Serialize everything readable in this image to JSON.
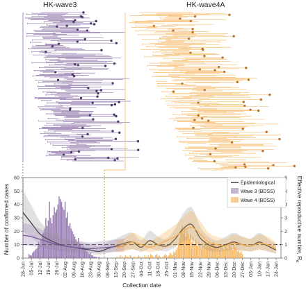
{
  "chart_data": {
    "type": "bar",
    "panels": {
      "tree": {
        "labels": [
          "HK-wave3",
          "HK-wave4A"
        ],
        "colors": {
          "wave3": "#7a5a9a",
          "wave4": "#f5ae4e"
        }
      }
    },
    "xlabel": "Collection date",
    "ylabel": "Number of confirmed cases",
    "y2label": "Effective reproductive number, R",
    "y2label_sub": "e",
    "ylim": [
      0,
      60
    ],
    "y2lim": [
      0,
      6
    ],
    "yticks": [
      0,
      10,
      20,
      30,
      40,
      50,
      60
    ],
    "y2ticks": [
      0,
      1,
      2,
      3,
      4,
      5,
      6
    ],
    "x_tick_labels": [
      "28-Jun",
      "05-Jul",
      "12-Jul",
      "19-Jul",
      "26-Jul",
      "02-Aug",
      "09-Aug",
      "16-Aug",
      "23-Aug",
      "30-Aug",
      "06-Sep",
      "13-Sep",
      "20-Sep",
      "27-Sep",
      "04-Oct",
      "11-Oct",
      "18-Oct",
      "25-Oct",
      "01-Nov",
      "08-Nov",
      "15-Nov",
      "22-Nov",
      "29-Nov",
      "06-Dec",
      "13-Dec",
      "20-Dec",
      "27-Dec",
      "03-Jan",
      "10-Jan",
      "17-Jan",
      "24-Jan"
    ],
    "x_start": "2020-06-28",
    "legend": {
      "placement": "top-right",
      "items": [
        {
          "label": "Epidemiological",
          "color": "#333333"
        },
        {
          "label": "Wave 3 (BDSS)",
          "color": "#7a5a9a"
        },
        {
          "label": "Wave 4 (BDSS)",
          "color": "#f5ae4e"
        }
      ]
    },
    "threshold_line": 1,
    "series": [
      {
        "name": "Wave 3",
        "kind": "bar",
        "color": "#8a6aa8",
        "start": "2020-07-03",
        "values": [
          3,
          2,
          2,
          4,
          5,
          6,
          7,
          8,
          12,
          10,
          14,
          18,
          19,
          22,
          30,
          24,
          28,
          42,
          30,
          26,
          32,
          38,
          34,
          36,
          40,
          46,
          44,
          42,
          38,
          36,
          42,
          30,
          34,
          24,
          26,
          22,
          20,
          18,
          16,
          14,
          12,
          15,
          11,
          10,
          8,
          9,
          7,
          6,
          5,
          4,
          3,
          4,
          2,
          2,
          1,
          1,
          1,
          0,
          1,
          0
        ]
      },
      {
        "name": "Wave 4",
        "kind": "bar",
        "color": "#f5ae4e",
        "start": "2020-09-14",
        "values": [
          1,
          0,
          1,
          2,
          0,
          1,
          0,
          2,
          1,
          1,
          0,
          2,
          1,
          0,
          1,
          1,
          0,
          1,
          2,
          1,
          0,
          1,
          0,
          2,
          1,
          1,
          2,
          1,
          3,
          2,
          1,
          0,
          2,
          3,
          1,
          2,
          1,
          0,
          1,
          2,
          3,
          2,
          1,
          2,
          4,
          3,
          2,
          5,
          4,
          6,
          8,
          11,
          15,
          20,
          24,
          18,
          22,
          16,
          20,
          18,
          14,
          18,
          12,
          16,
          10,
          14,
          12,
          9,
          12,
          10,
          8,
          11,
          9,
          13,
          8,
          10,
          12,
          9,
          8,
          10,
          12,
          9,
          8,
          7,
          9,
          6,
          8,
          10,
          7,
          6,
          9,
          8,
          7,
          11,
          9,
          8,
          6,
          10,
          8,
          7,
          5,
          6,
          4,
          5,
          3
        ]
      },
      {
        "name": "Epidemiological",
        "kind": "line",
        "axis": "right",
        "color": "#333333",
        "points": [
          [
            0,
            3.4
          ],
          [
            7,
            2.6
          ],
          [
            14,
            1.8
          ],
          [
            21,
            1.4
          ],
          [
            28,
            1.1
          ],
          [
            35,
            0.9
          ],
          [
            42,
            0.8
          ],
          [
            49,
            0.7
          ],
          [
            56,
            0.6
          ],
          [
            63,
            0.5
          ],
          [
            70,
            0.7
          ],
          [
            77,
            0.9
          ],
          [
            84,
            1.1
          ],
          [
            91,
            1.2
          ],
          [
            98,
            0.8
          ],
          [
            105,
            1.3
          ],
          [
            112,
            1.0
          ],
          [
            119,
            0.9
          ],
          [
            126,
            1.4
          ],
          [
            133,
            2.2
          ],
          [
            140,
            2.5
          ],
          [
            147,
            1.5
          ],
          [
            154,
            1.0
          ],
          [
            161,
            0.8
          ],
          [
            168,
            1.0
          ],
          [
            175,
            1.2
          ],
          [
            182,
            1.0
          ],
          [
            189,
            0.9
          ],
          [
            196,
            1.2
          ],
          [
            203,
            0.9
          ],
          [
            210,
            0.6
          ]
        ]
      },
      {
        "name": "Wave 3 (BDSS)",
        "kind": "line",
        "axis": "right",
        "color": "#7a5a9a",
        "points": [
          [
            0,
            1.7
          ],
          [
            7,
            1.6
          ],
          [
            14,
            1.4
          ],
          [
            21,
            1.2
          ],
          [
            28,
            1.0
          ],
          [
            35,
            0.9
          ],
          [
            42,
            0.8
          ],
          [
            49,
            0.75
          ],
          [
            56,
            0.7
          ],
          [
            63,
            0.75
          ],
          [
            70,
            0.8
          ],
          [
            77,
            0.85
          ],
          [
            84,
            0.9
          ]
        ]
      },
      {
        "name": "Wave 4 (BDSS)",
        "kind": "line",
        "axis": "right",
        "color": "#f5ae4e",
        "points": [
          [
            77,
            0.8
          ],
          [
            84,
            0.9
          ],
          [
            91,
            1.2
          ],
          [
            98,
            1.0
          ],
          [
            105,
            0.8
          ],
          [
            112,
            1.0
          ],
          [
            119,
            1.3
          ],
          [
            126,
            1.6
          ],
          [
            133,
            2.0
          ],
          [
            140,
            2.3
          ],
          [
            147,
            1.8
          ],
          [
            154,
            1.2
          ],
          [
            161,
            1.0
          ],
          [
            168,
            0.9
          ],
          [
            175,
            1.1
          ],
          [
            182,
            1.0
          ],
          [
            189,
            0.9
          ],
          [
            196,
            1.1
          ],
          [
            203,
            1.0
          ],
          [
            210,
            0.7
          ]
        ]
      }
    ]
  }
}
